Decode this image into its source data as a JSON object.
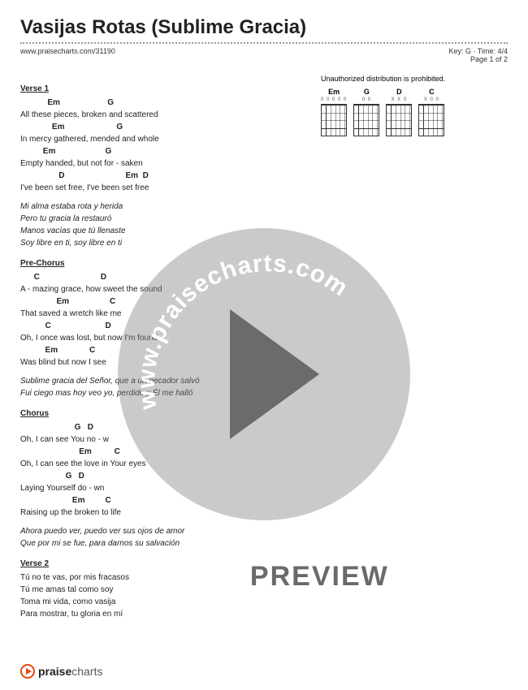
{
  "title": "Vasijas Rotas (Sublime Gracia)",
  "source_url": "www.praisecharts.com/31190",
  "key": "G",
  "time_sig": "4/4",
  "page": "Page 1 of 2",
  "prohibited": "Unauthorized distribution is prohibited.",
  "chord_diagrams": [
    {
      "name": "Em",
      "fingering": "0  0 0 0 0"
    },
    {
      "name": "G",
      "fingering": "    0 0"
    },
    {
      "name": "D",
      "fingering": "X X 0"
    },
    {
      "name": "C",
      "fingering": "X    0   0"
    }
  ],
  "sections": [
    {
      "label": "Verse 1",
      "lines": [
        {
          "chords": "            Em                     G",
          "lyric": "All these pieces, broken and scattered"
        },
        {
          "chords": "              Em                       G",
          "lyric": "In mercy gathered, mended and whole"
        },
        {
          "chords": "          Em                      G",
          "lyric": "Empty handed, but not for - saken"
        },
        {
          "chords": "                 D                           Em  D",
          "lyric": "I've been set free, I've been set free"
        }
      ],
      "italic_lines": [
        "Mi alma estaba rota y herida",
        "Pero tu gracia la restauró",
        "Manos vacías que tú llenaste",
        "Soy libre en ti, soy libre en ti"
      ]
    },
    {
      "label": "Pre-Chorus",
      "lines": [
        {
          "chords": "      C                           D",
          "lyric": "A - mazing grace, how sweet the sound"
        },
        {
          "chords": "                Em                  C",
          "lyric": "That saved a wretch like me"
        },
        {
          "chords": "           C                        D",
          "lyric": "Oh, I once was lost, but now I'm found"
        },
        {
          "chords": "           Em              C",
          "lyric": "Was blind but now I see"
        }
      ],
      "italic_lines": [
        "Sublime gracia del Señor, que a un pecador salvó",
        "Fui ciego mas hoy veo yo, perdido y Él me halló"
      ]
    },
    {
      "label": "Chorus",
      "lines": [
        {
          "chords": "                        G   D",
          "lyric": "Oh, I can see You no - w"
        },
        {
          "chords": "                          Em          C",
          "lyric": "Oh, I can see the love in Your eyes"
        },
        {
          "chords": "                    G   D",
          "lyric": "Laying Yourself do - wn"
        },
        {
          "chords": "                       Em         C",
          "lyric": "Raising up the broken to life"
        }
      ],
      "italic_lines": [
        "Ahora puedo ver, puedo ver sus ojos de amor",
        "Que por mi se fue, para darnos su salvación"
      ]
    },
    {
      "label": "Verse 2",
      "lines": [
        {
          "chords": "",
          "lyric": "Tú no te vas, por mis fracasos"
        },
        {
          "chords": "",
          "lyric": "Tú me amas tal como soy"
        },
        {
          "chords": "",
          "lyric": "Toma mi vida, como vasija"
        },
        {
          "chords": "",
          "lyric": "Para mostrar, tu gloria en mí"
        }
      ],
      "italic_lines": []
    }
  ],
  "watermark_text": "www.praisecharts.com",
  "preview_label": "PREVIEW",
  "footer_brand_bold": "praise",
  "footer_brand_light": "charts",
  "colors": {
    "accent": "#e8480c",
    "wm_circle": "rgba(128,128,128,0.42)",
    "wm_play": "rgba(90,90,90,0.85)"
  }
}
